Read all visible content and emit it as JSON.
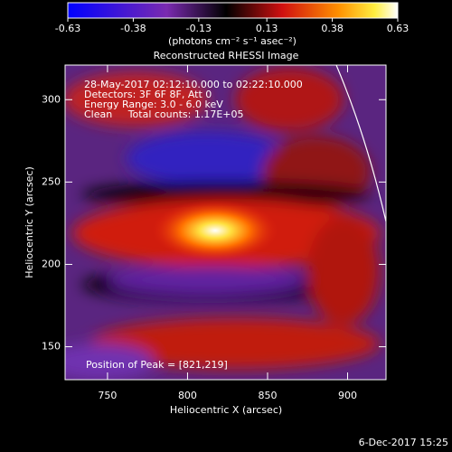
{
  "chart_data": {
    "type": "heatmap",
    "title": "Reconstructed RHESSI Image",
    "colorbar_label": "(photons cm⁻² s⁻¹ asec⁻²)",
    "clim": [
      -0.63,
      0.63
    ],
    "cticks": [
      -0.63,
      -0.38,
      -0.13,
      0.13,
      0.38,
      0.63
    ],
    "x_label": "Heliocentric X (arcsec)",
    "y_label": "Heliocentric Y (arcsec)",
    "xlim": [
      723.5,
      924
    ],
    "xticks": [
      750,
      800,
      850,
      900
    ],
    "ylim": [
      130,
      321
    ],
    "yticks": [
      150,
      200,
      250,
      300
    ],
    "annotations": [
      "28-May-2017 02:12:10.000 to 02:22:10.000",
      "Detectors: 3F 6F 8F, Att 0",
      "Energy Range: 3.0 - 6.0 keV",
      "Clean     Total counts: 1.17E+05"
    ],
    "peak_label": "Position of Peak = [821,219]",
    "timestamp": "6-Dec-2017 15:25"
  }
}
